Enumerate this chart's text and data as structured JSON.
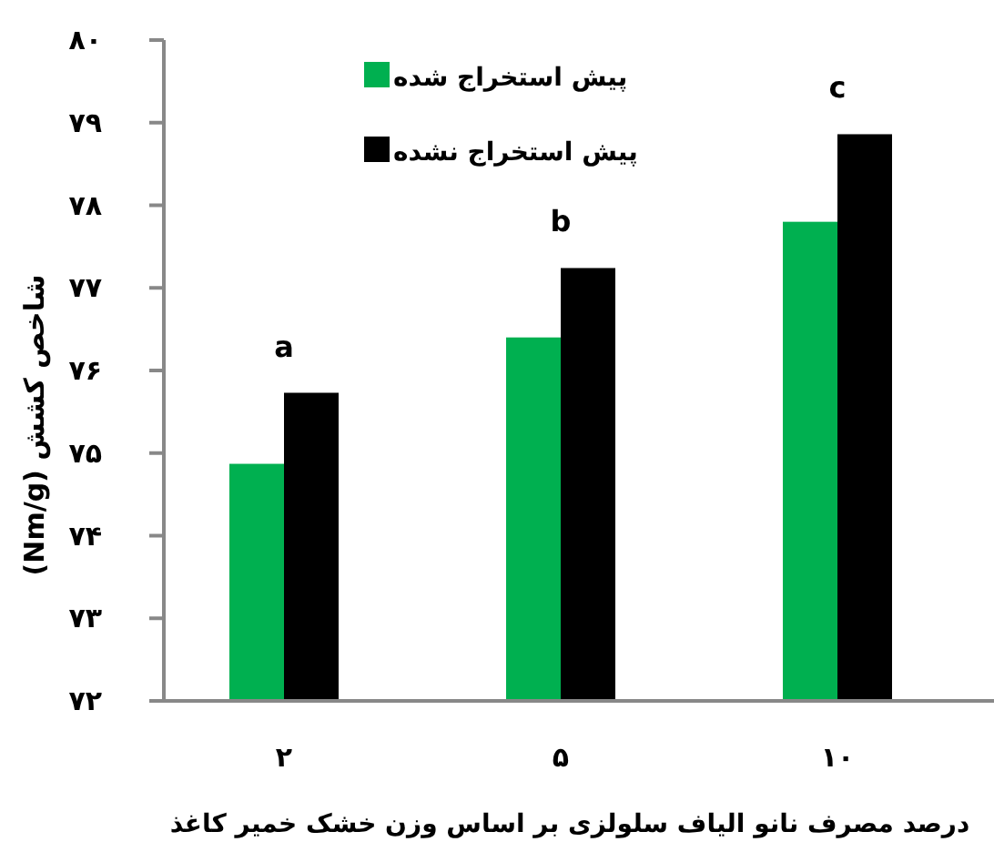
{
  "chart_data": {
    "type": "bar",
    "xlabel": "درصد مصرف نانو الیاف سلولزی بر اساس وزن خشک خمیر کاغذ",
    "ylabel": "شاخص کشش (Nm/g)",
    "categories": [
      "۲",
      "۵",
      "۱۰"
    ],
    "series": [
      {
        "name": "پیش استخراج شده",
        "color": "#00b050",
        "values": [
          74.87,
          76.4,
          77.8
        ]
      },
      {
        "name": "پیش استخراج نشده",
        "color": "#000000",
        "values": [
          75.73,
          77.24,
          78.86
        ]
      }
    ],
    "ylim": [
      72,
      80
    ],
    "yticks": [
      {
        "value": 72,
        "label": "۷۲"
      },
      {
        "value": 73,
        "label": "۷۳"
      },
      {
        "value": 74,
        "label": "۷۴"
      },
      {
        "value": 75,
        "label": "۷۵"
      },
      {
        "value": 76,
        "label": "۷۶"
      },
      {
        "value": 77,
        "label": "۷۷"
      },
      {
        "value": 78,
        "label": "۷۸"
      },
      {
        "value": 79,
        "label": "۷۹"
      },
      {
        "value": 80,
        "label": "۸۰"
      }
    ],
    "annotations": [
      "a",
      "b",
      "c"
    ],
    "grid": false,
    "legend": "top"
  }
}
